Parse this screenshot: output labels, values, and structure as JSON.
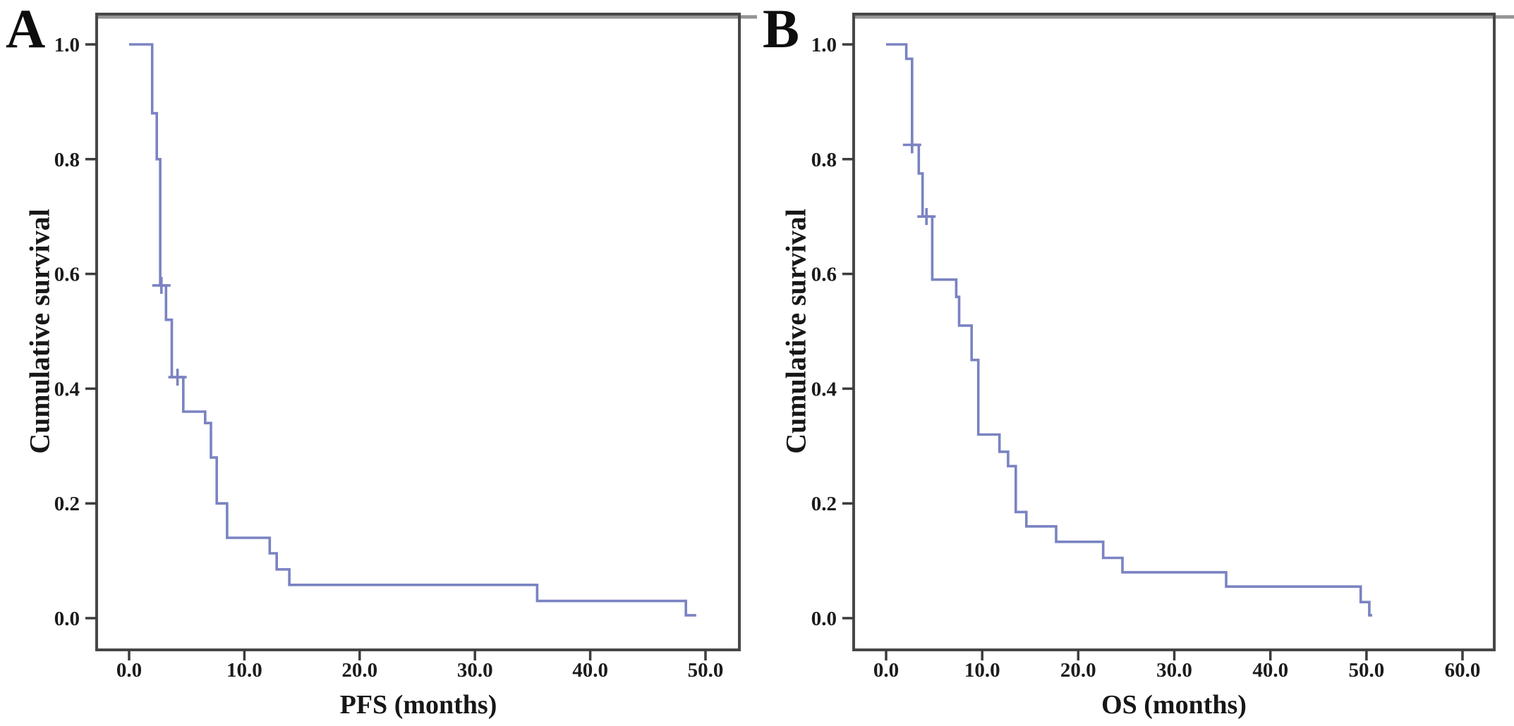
{
  "figure": {
    "description": "Kaplan-Meier cumulative survival curves, panels A and B",
    "background": "#ffffff",
    "colors": {
      "curve": "#7a83c2",
      "frame": "#474747",
      "frame_top_band": "#949494",
      "tick": "#3c3c3c",
      "text": "#1b1b1b"
    }
  },
  "chart_data": [
    {
      "type": "line",
      "step": "post",
      "panel_label": "A",
      "xlabel": "PFS (months)",
      "ylabel": "Cumulative survival",
      "x_ticks": [
        0,
        10,
        20,
        30,
        40,
        50
      ],
      "x_tick_labels": [
        "0.0",
        "10.0",
        "20.0",
        "30.0",
        "40.0",
        "50.0"
      ],
      "y_ticks": [
        0.0,
        0.2,
        0.4,
        0.6,
        0.8,
        1.0
      ],
      "y_tick_labels": [
        "0.0",
        "0.2",
        "0.4",
        "0.6",
        "0.8",
        "1.0"
      ],
      "xlim": [
        0,
        53
      ],
      "ylim": [
        0,
        1.0
      ],
      "grid": false,
      "legend": null,
      "points": [
        [
          0.0,
          1.0
        ],
        [
          2.0,
          0.88
        ],
        [
          2.4,
          0.8
        ],
        [
          2.7,
          0.58
        ],
        [
          3.2,
          0.52
        ],
        [
          3.7,
          0.42
        ],
        [
          4.7,
          0.36
        ],
        [
          6.6,
          0.34
        ],
        [
          7.1,
          0.28
        ],
        [
          7.6,
          0.2
        ],
        [
          8.5,
          0.14
        ],
        [
          12.2,
          0.113
        ],
        [
          12.8,
          0.085
        ],
        [
          13.9,
          0.058
        ],
        [
          35.4,
          0.03
        ],
        [
          48.3,
          0.005
        ]
      ],
      "end_time": 49.2,
      "censored": [
        [
          2.8,
          0.58
        ],
        [
          4.2,
          0.42
        ]
      ]
    },
    {
      "type": "line",
      "step": "post",
      "panel_label": "B",
      "xlabel": "OS (months)",
      "ylabel": "Cumulative survival",
      "x_ticks": [
        0,
        10,
        20,
        30,
        40,
        50,
        60
      ],
      "x_tick_labels": [
        "0.0",
        "10.0",
        "20.0",
        "30.0",
        "40.0",
        "50.0",
        "60.0"
      ],
      "y_ticks": [
        0.0,
        0.2,
        0.4,
        0.6,
        0.8,
        1.0
      ],
      "y_tick_labels": [
        "0.0",
        "0.2",
        "0.4",
        "0.6",
        "0.8",
        "1.0"
      ],
      "xlim": [
        0,
        63
      ],
      "ylim": [
        0,
        1.0
      ],
      "grid": false,
      "legend": null,
      "points": [
        [
          0.0,
          1.0
        ],
        [
          2.1,
          0.975
        ],
        [
          2.7,
          0.825
        ],
        [
          3.4,
          0.775
        ],
        [
          3.8,
          0.7
        ],
        [
          4.8,
          0.59
        ],
        [
          7.3,
          0.56
        ],
        [
          7.6,
          0.51
        ],
        [
          8.9,
          0.45
        ],
        [
          9.6,
          0.32
        ],
        [
          11.8,
          0.29
        ],
        [
          12.7,
          0.265
        ],
        [
          13.5,
          0.185
        ],
        [
          14.6,
          0.16
        ],
        [
          17.7,
          0.133
        ],
        [
          22.6,
          0.105
        ],
        [
          24.6,
          0.08
        ],
        [
          35.4,
          0.055
        ],
        [
          49.4,
          0.028
        ],
        [
          50.3,
          0.005
        ]
      ],
      "end_time": 50.6,
      "censored": [
        [
          2.7,
          0.825
        ],
        [
          4.2,
          0.7
        ]
      ]
    }
  ]
}
